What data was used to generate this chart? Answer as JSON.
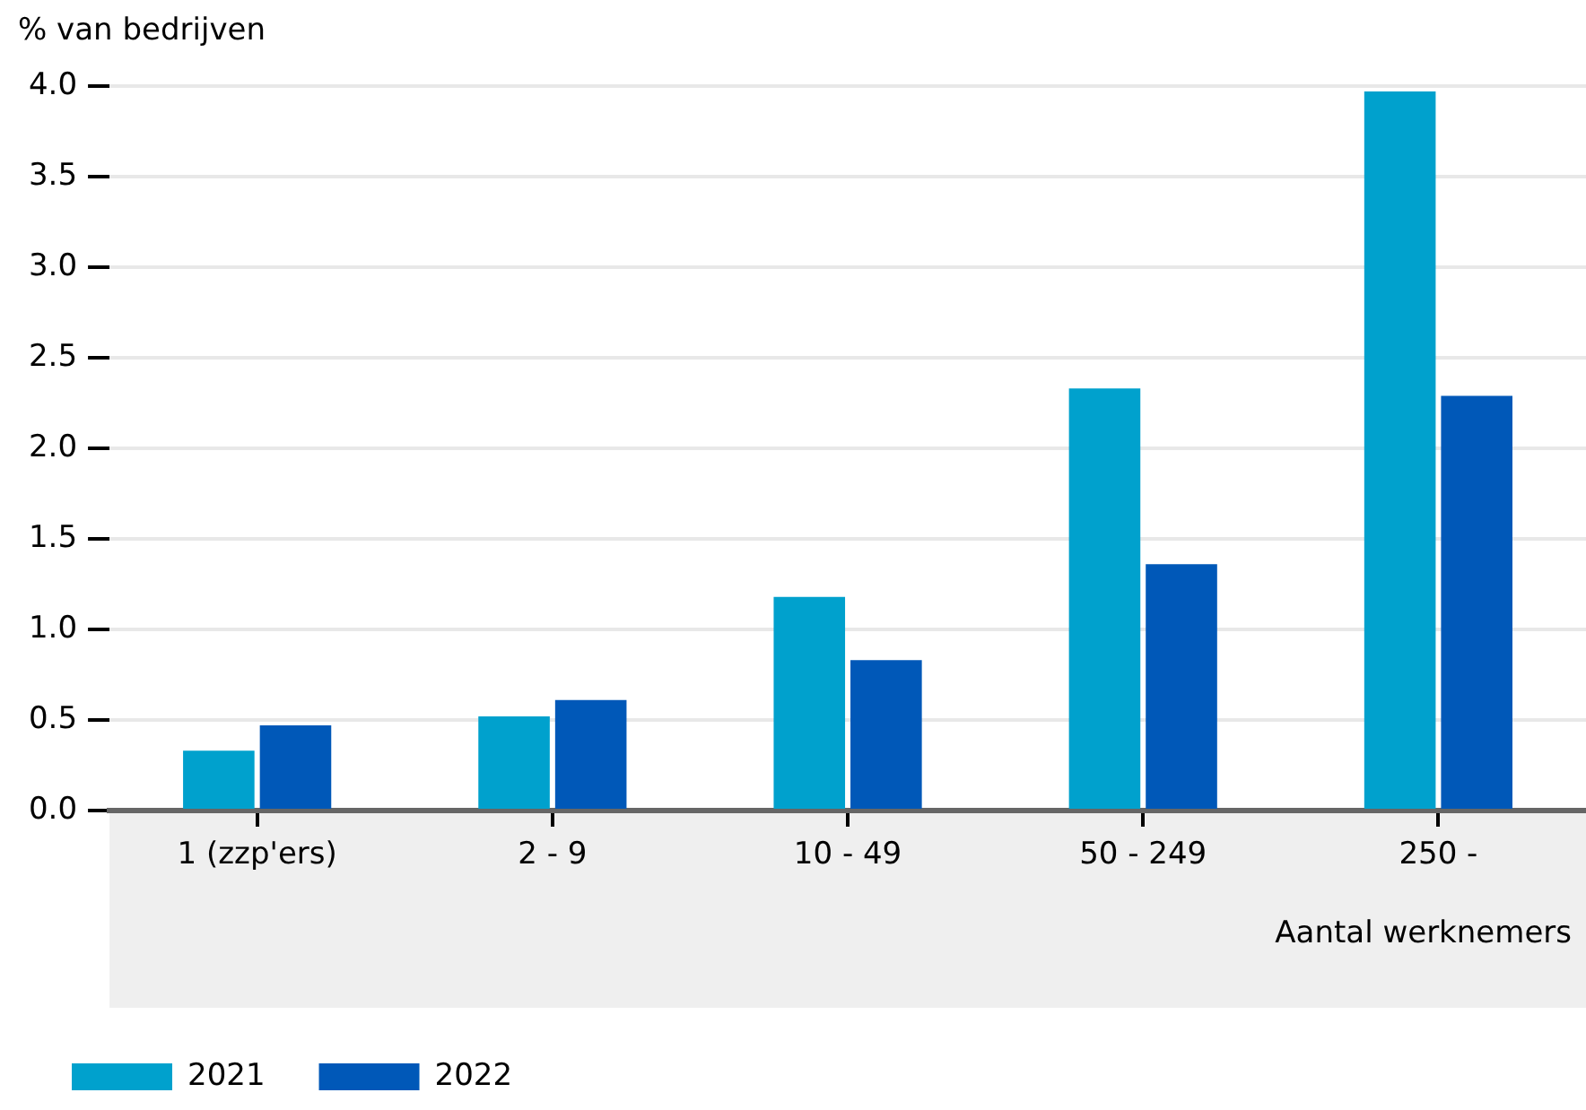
{
  "chart_data": {
    "type": "bar",
    "ylabel": "% van bedrijven",
    "xlabel": "Aantal werknemers",
    "categories": [
      "1 (zzp'ers)",
      "2 - 9",
      "10 - 49",
      "50 - 249",
      "250 -"
    ],
    "series": [
      {
        "name": "2021",
        "color": "#00a1cd",
        "values": [
          0.33,
          0.52,
          1.18,
          2.33,
          3.97
        ]
      },
      {
        "name": "2022",
        "color": "#0058b8",
        "values": [
          0.47,
          0.61,
          0.83,
          1.36,
          2.29
        ]
      }
    ],
    "ylim": [
      0,
      4.0
    ],
    "yticks": [
      {
        "value": 0,
        "label": "0.0"
      },
      {
        "value": 0.5,
        "label": "0.5"
      },
      {
        "value": 1,
        "label": "1.0"
      },
      {
        "value": 1.5,
        "label": "1.5"
      },
      {
        "value": 2,
        "label": "2.0"
      },
      {
        "value": 2.5,
        "label": "2.5"
      },
      {
        "value": 3,
        "label": "3.0"
      },
      {
        "value": 3.5,
        "label": "3.5"
      },
      {
        "value": 4,
        "label": "4.0"
      }
    ],
    "grid": "y",
    "legend": "bottom left"
  }
}
